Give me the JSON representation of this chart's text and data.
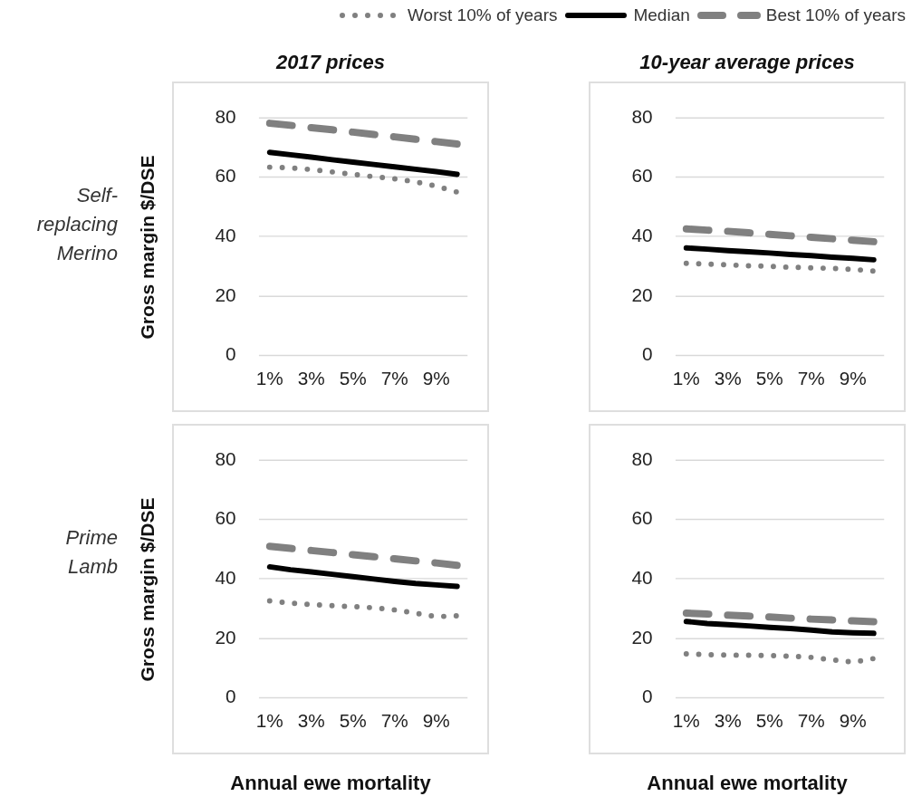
{
  "chart_data": [
    {
      "type": "line",
      "title": "2017 prices",
      "ylabel": "Gross margin $/DSE",
      "annotations": [
        "Self-replacing Merino"
      ],
      "categories": [
        "1%",
        null,
        "3%",
        null,
        "5%",
        null,
        "7%",
        null,
        "9%",
        null
      ],
      "ylim": [
        0,
        80
      ],
      "yticks": [
        0,
        20,
        40,
        60,
        80
      ],
      "grid": "y",
      "legend": "top",
      "marker": "none",
      "series": [
        {
          "name": "Worst 10% of years",
          "color": "#808080",
          "line_style": "dotted",
          "values": [
            63.4,
            63.2,
            62.6,
            61.8,
            61,
            60.2,
            59.5,
            58.5,
            57,
            55
          ]
        },
        {
          "name": "Median",
          "color": "#000000",
          "line_style": "solid",
          "values": [
            68.4,
            67.6,
            66.8,
            65.9,
            65.1,
            64.3,
            63.5,
            62.7,
            61.9,
            61
          ]
        },
        {
          "name": "Best 10% of years",
          "color": "#808080",
          "line_style": "dashed",
          "values": [
            78.2,
            77.5,
            76.7,
            76,
            75.2,
            74.4,
            73.6,
            72.8,
            72,
            71.2
          ]
        }
      ]
    },
    {
      "type": "line",
      "title": "10-year average prices",
      "categories": [
        "1%",
        null,
        "3%",
        null,
        "5%",
        null,
        "7%",
        null,
        "9%",
        null
      ],
      "ylim": [
        0,
        80
      ],
      "yticks": [
        0,
        20,
        40,
        60,
        80
      ],
      "grid": "y",
      "marker": "none",
      "series": [
        {
          "color": "#808080",
          "line_style": "dotted",
          "values": [
            31,
            30.8,
            30.5,
            30.2,
            30,
            29.7,
            29.5,
            29.3,
            29,
            28.4
          ]
        },
        {
          "color": "#000000",
          "line_style": "solid",
          "values": [
            36.2,
            35.8,
            35.3,
            34.9,
            34.5,
            34,
            33.6,
            33.1,
            32.7,
            32.2
          ]
        },
        {
          "color": "#808080",
          "line_style": "dashed",
          "values": [
            42.6,
            42.2,
            41.8,
            41.3,
            40.8,
            40.3,
            39.8,
            39.3,
            38.8,
            38.3
          ]
        }
      ]
    },
    {
      "type": "line",
      "ylabel": "Gross margin $/DSE",
      "xlabel": "Annual ewe mortality",
      "annotations": [
        "Prime Lamb"
      ],
      "categories": [
        "1%",
        null,
        "3%",
        null,
        "5%",
        null,
        "7%",
        null,
        "9%",
        null
      ],
      "ylim": [
        0,
        80
      ],
      "yticks": [
        0,
        20,
        40,
        60,
        80
      ],
      "grid": "y",
      "marker": "none",
      "series": [
        {
          "color": "#808080",
          "line_style": "dotted",
          "values": [
            32.6,
            31.9,
            31.4,
            31,
            30.7,
            30.3,
            29.6,
            28.5,
            27.3,
            27.6
          ]
        },
        {
          "color": "#000000",
          "line_style": "solid",
          "values": [
            44.1,
            43.1,
            42.4,
            41.6,
            40.8,
            40,
            39.2,
            38.5,
            38,
            37.5
          ]
        },
        {
          "color": "#808080",
          "line_style": "dashed",
          "values": [
            51,
            50.3,
            49.6,
            48.9,
            48.2,
            47.5,
            46.8,
            46.1,
            45.4,
            44.6
          ]
        }
      ]
    },
    {
      "type": "line",
      "xlabel": "Annual ewe mortality",
      "categories": [
        "1%",
        null,
        "3%",
        null,
        "5%",
        null,
        "7%",
        null,
        "9%",
        null
      ],
      "ylim": [
        0,
        80
      ],
      "yticks": [
        0,
        20,
        40,
        60,
        80
      ],
      "grid": "y",
      "marker": "none",
      "series": [
        {
          "color": "#808080",
          "line_style": "dotted",
          "values": [
            14.8,
            14.5,
            14.4,
            14.3,
            14.2,
            14,
            13.6,
            12.8,
            12,
            13.2
          ]
        },
        {
          "color": "#000000",
          "line_style": "solid",
          "values": [
            25.7,
            25,
            24.6,
            24.2,
            23.7,
            23.3,
            22.8,
            22.2,
            21.9,
            21.7
          ]
        },
        {
          "color": "#808080",
          "line_style": "dashed",
          "values": [
            28.5,
            28.2,
            27.8,
            27.5,
            27.2,
            26.8,
            26.5,
            26.2,
            25.9,
            25.6
          ]
        }
      ]
    }
  ]
}
